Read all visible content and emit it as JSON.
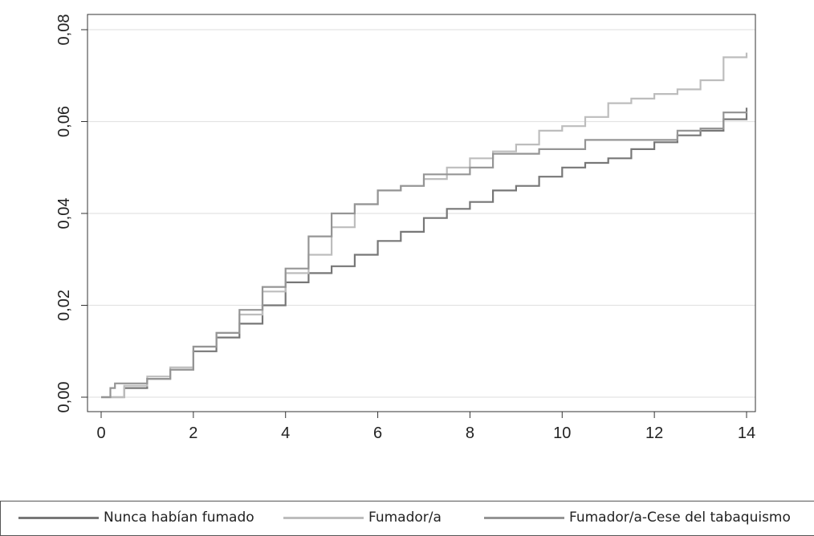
{
  "chart_data": {
    "type": "line",
    "xlim": [
      0,
      14
    ],
    "ylim": [
      0,
      0.08
    ],
    "x_ticks": [
      "0",
      "2",
      "4",
      "6",
      "8",
      "10",
      "12",
      "14"
    ],
    "y_ticks": [
      "0,00",
      "0,02",
      "0,04",
      "0,06",
      "0,08"
    ],
    "grid": "horizontal",
    "legend_position": "bottom",
    "series": [
      {
        "name": "Nunca habían fumado",
        "color": "#777777",
        "points": [
          [
            0,
            0
          ],
          [
            0.5,
            0.002
          ],
          [
            1,
            0.004
          ],
          [
            1.5,
            0.006
          ],
          [
            2,
            0.01
          ],
          [
            2.5,
            0.013
          ],
          [
            3,
            0.016
          ],
          [
            3.5,
            0.02
          ],
          [
            4,
            0.025
          ],
          [
            4.5,
            0.027
          ],
          [
            5,
            0.0285
          ],
          [
            5.5,
            0.031
          ],
          [
            6,
            0.034
          ],
          [
            6.5,
            0.036
          ],
          [
            7,
            0.039
          ],
          [
            7.5,
            0.041
          ],
          [
            8,
            0.0425
          ],
          [
            8.5,
            0.045
          ],
          [
            9,
            0.046
          ],
          [
            9.5,
            0.048
          ],
          [
            10,
            0.05
          ],
          [
            10.5,
            0.051
          ],
          [
            11,
            0.052
          ],
          [
            11.5,
            0.054
          ],
          [
            12,
            0.0555
          ],
          [
            12.5,
            0.057
          ],
          [
            13,
            0.058
          ],
          [
            13.5,
            0.0605
          ],
          [
            14,
            0.063
          ]
        ]
      },
      {
        "name": "Fumador/a",
        "color": "#bdbdbd",
        "points": [
          [
            0,
            0
          ],
          [
            0.5,
            0.0025
          ],
          [
            1,
            0.0045
          ],
          [
            1.5,
            0.0065
          ],
          [
            2,
            0.011
          ],
          [
            2.5,
            0.014
          ],
          [
            3,
            0.018
          ],
          [
            3.5,
            0.023
          ],
          [
            4,
            0.027
          ],
          [
            4.5,
            0.031
          ],
          [
            5,
            0.037
          ],
          [
            5.5,
            0.042
          ],
          [
            6,
            0.045
          ],
          [
            6.5,
            0.046
          ],
          [
            7,
            0.0475
          ],
          [
            7.5,
            0.05
          ],
          [
            8,
            0.052
          ],
          [
            8.5,
            0.0535
          ],
          [
            9,
            0.055
          ],
          [
            9.5,
            0.058
          ],
          [
            10,
            0.059
          ],
          [
            10.5,
            0.061
          ],
          [
            11,
            0.064
          ],
          [
            11.5,
            0.065
          ],
          [
            12,
            0.066
          ],
          [
            12.5,
            0.067
          ],
          [
            13,
            0.069
          ],
          [
            13.5,
            0.074
          ],
          [
            14,
            0.075
          ]
        ]
      },
      {
        "name": "Fumador/a-Cese del tabaquismo",
        "color": "#959595",
        "points": [
          [
            0,
            0
          ],
          [
            0.2,
            0.002
          ],
          [
            0.3,
            0.003
          ],
          [
            0.8,
            0.003
          ],
          [
            1,
            0.004
          ],
          [
            1.5,
            0.006
          ],
          [
            2,
            0.011
          ],
          [
            2.5,
            0.014
          ],
          [
            3,
            0.019
          ],
          [
            3.5,
            0.024
          ],
          [
            4,
            0.028
          ],
          [
            4.5,
            0.035
          ],
          [
            5,
            0.04
          ],
          [
            5.5,
            0.042
          ],
          [
            6,
            0.045
          ],
          [
            6.5,
            0.046
          ],
          [
            7,
            0.0485
          ],
          [
            7.5,
            0.0485
          ],
          [
            8,
            0.05
          ],
          [
            8.5,
            0.053
          ],
          [
            9,
            0.053
          ],
          [
            9.5,
            0.054
          ],
          [
            10,
            0.054
          ],
          [
            10.5,
            0.0545
          ],
          [
            10.5,
            0.056
          ],
          [
            11.5,
            0.056
          ],
          [
            12,
            0.056
          ],
          [
            12.5,
            0.058
          ],
          [
            13,
            0.0585
          ],
          [
            13.5,
            0.062
          ],
          [
            14,
            0.0618
          ]
        ]
      }
    ]
  }
}
